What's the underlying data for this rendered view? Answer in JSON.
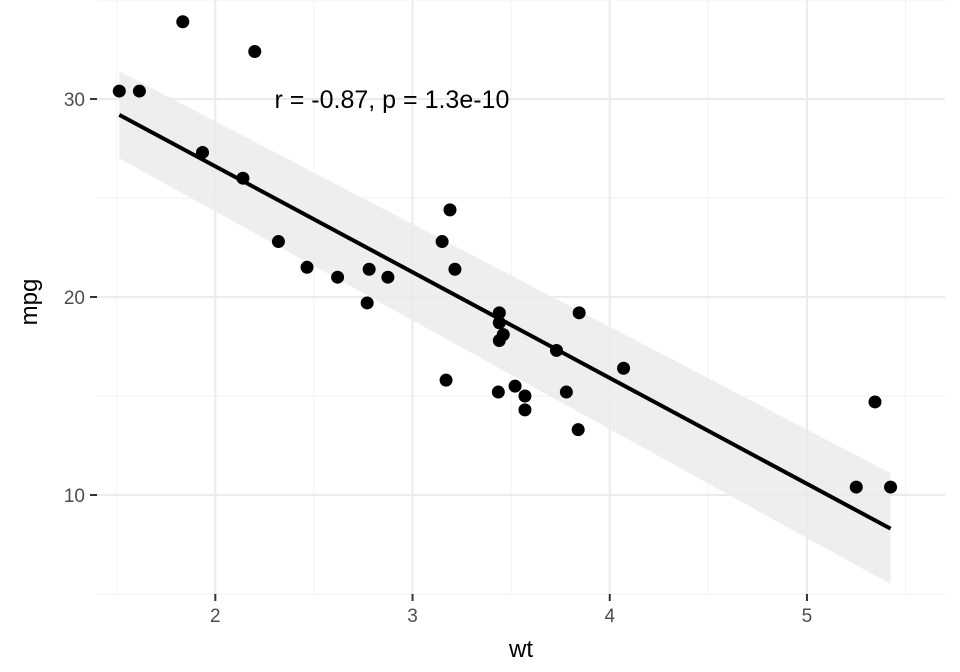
{
  "chart_data": {
    "type": "scatter",
    "title": "",
    "xlabel": "wt",
    "ylabel": "mpg",
    "xlim": [
      1.4,
      5.7
    ],
    "ylim": [
      5,
      35
    ],
    "x_ticks": [
      2,
      3,
      4,
      5
    ],
    "x_tick_labels": [
      "2",
      "3",
      "4",
      "5"
    ],
    "y_ticks": [
      10,
      20,
      30
    ],
    "y_tick_labels": [
      "10",
      "20",
      "30"
    ],
    "grid": true,
    "points": [
      {
        "x": 2.62,
        "y": 21.0
      },
      {
        "x": 2.875,
        "y": 21.0
      },
      {
        "x": 2.32,
        "y": 22.8
      },
      {
        "x": 3.215,
        "y": 21.4
      },
      {
        "x": 3.44,
        "y": 18.7
      },
      {
        "x": 3.46,
        "y": 18.1
      },
      {
        "x": 3.57,
        "y": 14.3
      },
      {
        "x": 3.19,
        "y": 24.4
      },
      {
        "x": 3.15,
        "y": 22.8
      },
      {
        "x": 3.44,
        "y": 19.2
      },
      {
        "x": 3.44,
        "y": 17.8
      },
      {
        "x": 4.07,
        "y": 16.4
      },
      {
        "x": 3.73,
        "y": 17.3
      },
      {
        "x": 3.78,
        "y": 15.2
      },
      {
        "x": 5.25,
        "y": 10.4
      },
      {
        "x": 5.424,
        "y": 10.4
      },
      {
        "x": 5.345,
        "y": 14.7
      },
      {
        "x": 2.2,
        "y": 32.4
      },
      {
        "x": 1.615,
        "y": 30.4
      },
      {
        "x": 1.835,
        "y": 33.9
      },
      {
        "x": 2.465,
        "y": 21.5
      },
      {
        "x": 3.52,
        "y": 15.5
      },
      {
        "x": 3.435,
        "y": 15.2
      },
      {
        "x": 3.84,
        "y": 13.3
      },
      {
        "x": 3.845,
        "y": 19.2
      },
      {
        "x": 1.935,
        "y": 27.3
      },
      {
        "x": 2.14,
        "y": 26.0
      },
      {
        "x": 1.513,
        "y": 30.4
      },
      {
        "x": 3.17,
        "y": 15.8
      },
      {
        "x": 2.77,
        "y": 19.7
      },
      {
        "x": 3.57,
        "y": 15.0
      },
      {
        "x": 2.78,
        "y": 21.4
      }
    ],
    "fit_line": {
      "x": [
        1.513,
        5.424
      ],
      "y": [
        29.2,
        8.3
      ]
    },
    "confidence_band": {
      "x": [
        1.513,
        5.424
      ],
      "upper": [
        31.4,
        11.1
      ],
      "lower": [
        27.0,
        5.5
      ]
    },
    "colors": {
      "point": "#000000",
      "line": "#000000",
      "band": "#ebebeb",
      "grid_major": "#ebebeb",
      "grid_minor": "#f2f2f2"
    },
    "annotation": {
      "text": "r = -0.87, p = 1.3e-10",
      "x": 2.3,
      "y": 30
    }
  }
}
